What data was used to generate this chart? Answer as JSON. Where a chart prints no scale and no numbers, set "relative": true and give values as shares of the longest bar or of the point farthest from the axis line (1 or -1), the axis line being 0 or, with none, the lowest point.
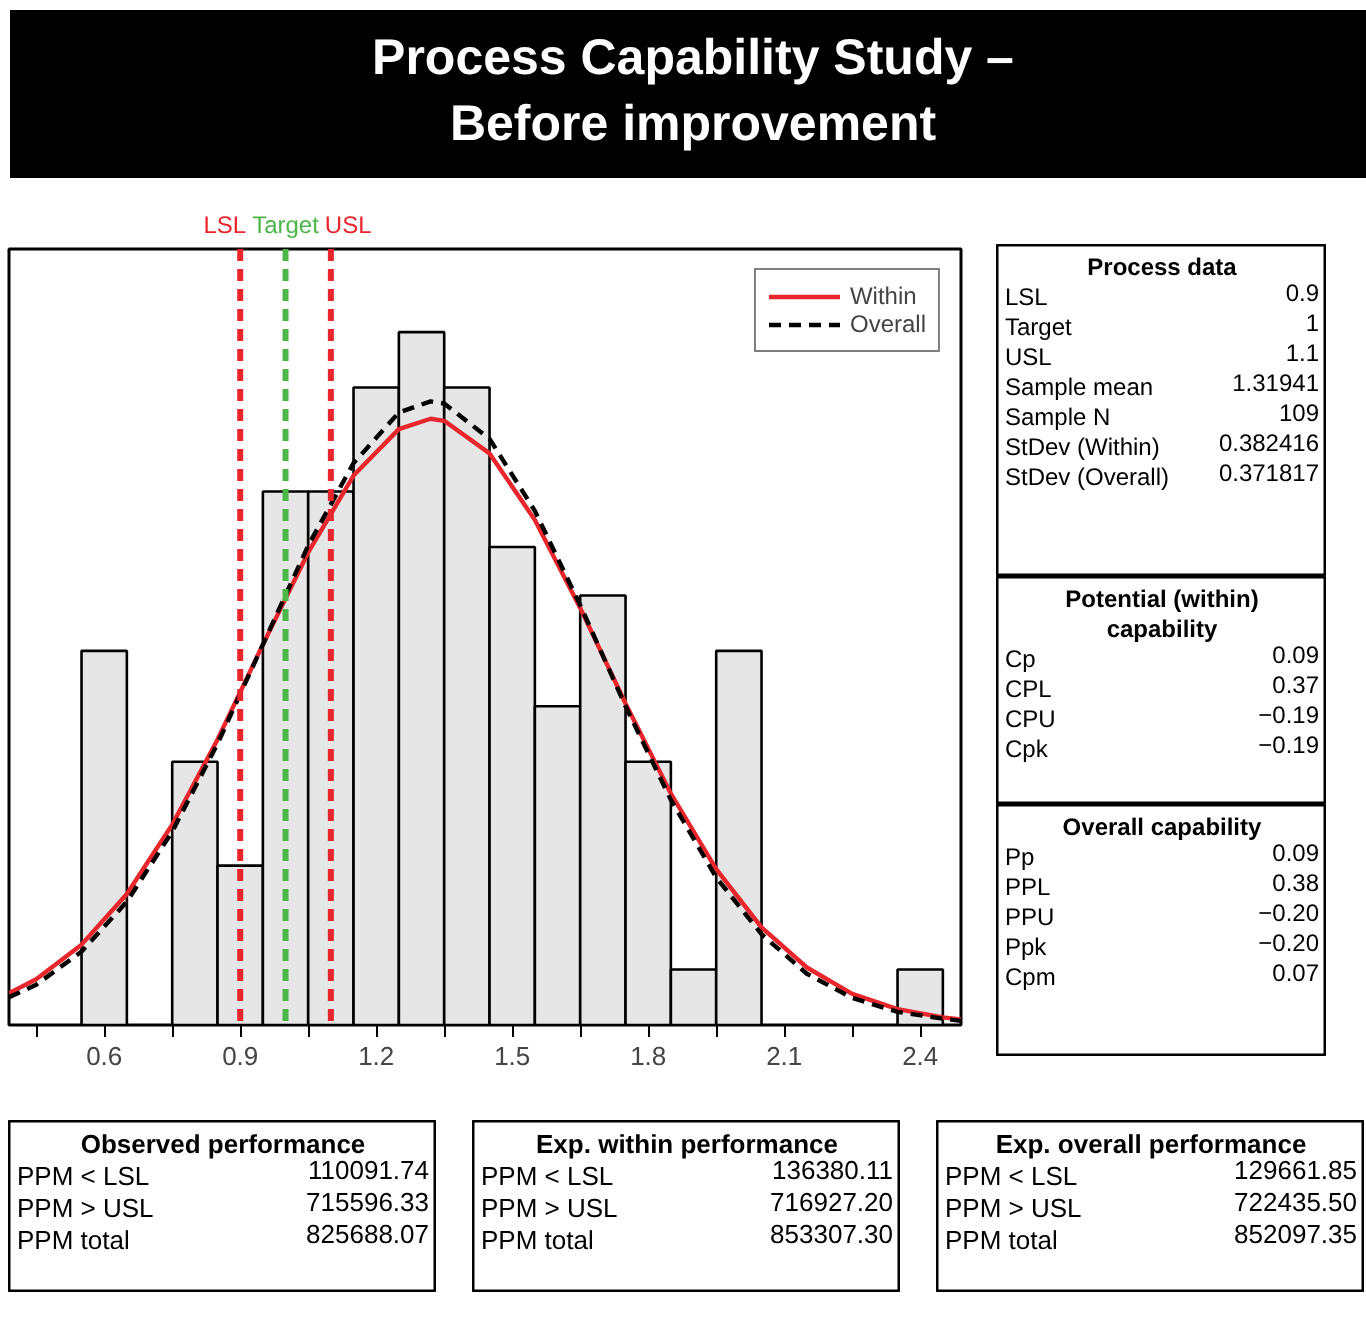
{
  "chart_data": [
    {
      "type": "histogram",
      "title": "Process Capability Study – Before improvement",
      "relative": true,
      "bins": [
        0.55,
        0.65,
        0.75,
        0.85,
        0.95,
        1.05,
        1.15,
        1.25,
        1.35,
        1.45,
        1.55,
        1.65,
        1.75,
        1.85,
        1.95,
        2.05,
        2.15,
        2.25,
        2.35,
        2.45
      ],
      "values": [
        0.54,
        0,
        0.38,
        0.23,
        0.77,
        0.77,
        0.92,
        1,
        0.92,
        0.69,
        0.46,
        0.62,
        0.38,
        0.08,
        0.54,
        0,
        0,
        0,
        0.08
      ],
      "color": "#e6e6e6",
      "series": [
        {
          "name": "Within",
          "type": "line",
          "line_style": "solid",
          "color": "#e8262b",
          "x": [
            0.39,
            0.45,
            0.55,
            0.65,
            0.75,
            0.85,
            0.95,
            1.05,
            1.15,
            1.25,
            1.32,
            1.35,
            1.45,
            1.55,
            1.65,
            1.75,
            1.85,
            1.95,
            2.05,
            2.15,
            2.25,
            2.35,
            2.45,
            2.49
          ],
          "values": [
            0.046,
            0.066,
            0.116,
            0.189,
            0.289,
            0.412,
            0.549,
            0.682,
            0.793,
            0.86,
            0.875,
            0.872,
            0.825,
            0.729,
            0.602,
            0.464,
            0.334,
            0.225,
            0.141,
            0.083,
            0.045,
            0.023,
            0.011,
            0.008
          ]
        },
        {
          "name": "Overall",
          "type": "line",
          "line_style": "dashed",
          "color": "#000000",
          "x": [
            0.39,
            0.45,
            0.55,
            0.65,
            0.75,
            0.85,
            0.95,
            1.05,
            1.15,
            1.25,
            1.32,
            1.35,
            1.45,
            1.55,
            1.65,
            1.75,
            1.85,
            1.95,
            2.05,
            2.15,
            2.25,
            2.35,
            2.45,
            2.49
          ],
          "values": [
            0.04,
            0.058,
            0.106,
            0.178,
            0.279,
            0.406,
            0.549,
            0.692,
            0.811,
            0.884,
            0.9,
            0.897,
            0.846,
            0.742,
            0.606,
            0.46,
            0.325,
            0.213,
            0.131,
            0.074,
            0.039,
            0.019,
            0.009,
            0.006
          ]
        }
      ],
      "xlim": [
        0.39,
        2.49
      ],
      "xticks": [
        {
          "value": 0.45,
          "label": null
        },
        0.6,
        {
          "value": 0.75,
          "label": null
        },
        0.9,
        {
          "value": 1.05,
          "label": null
        },
        1.2,
        {
          "value": 1.35,
          "label": null
        },
        1.5,
        {
          "value": 1.65,
          "label": null
        },
        1.8,
        {
          "value": 1.95,
          "label": null
        },
        2.1,
        {
          "value": 2.25,
          "label": null
        },
        2.4
      ],
      "ref_lines": [
        {
          "axis": "x",
          "value": 0.9,
          "label": "LSL",
          "color": "#e8262b",
          "line_style": "dashed"
        },
        {
          "axis": "x",
          "value": 1,
          "label": "Target",
          "color": "#4cb648",
          "line_style": "dashed"
        },
        {
          "axis": "x",
          "value": 1.1,
          "label": "USL",
          "color": "#e8262b",
          "line_style": "dashed"
        }
      ],
      "legend": "top right",
      "grid": false
    },
    {
      "type": "other",
      "title": "Process data",
      "categories": [
        "LSL",
        "Target",
        "USL",
        "Sample mean",
        "Sample N",
        "StDev (Within)",
        "StDev (Overall)"
      ],
      "value_labels": [
        "0.9",
        "1",
        "1.1",
        "1.31941",
        "109",
        "0.382416",
        "0.371817"
      ]
    },
    {
      "type": "other",
      "title": "Potential (within) capability",
      "categories": [
        "Cp",
        "CPL",
        "CPU",
        "Cpk"
      ],
      "value_labels": [
        "0.09",
        "0.37",
        "−0.19",
        "−0.19"
      ]
    },
    {
      "type": "other",
      "title": "Overall capability",
      "categories": [
        "Pp",
        "PPL",
        "PPU",
        "Ppk",
        "Cpm"
      ],
      "value_labels": [
        "0.09",
        "0.38",
        "−0.20",
        "−0.20",
        "0.07"
      ]
    },
    {
      "type": "other",
      "title": "Observed performance",
      "categories": [
        "PPM < LSL",
        "PPM > USL",
        "PPM total"
      ],
      "value_labels": [
        "110091.74",
        "715596.33",
        "825688.07"
      ]
    },
    {
      "type": "other",
      "title": "Exp. within performance",
      "categories": [
        "PPM < LSL",
        "PPM > USL",
        "PPM total"
      ],
      "value_labels": [
        "136380.11",
        "716927.20",
        "853307.30"
      ]
    },
    {
      "type": "other",
      "title": "Exp. overall performance",
      "categories": [
        "PPM < LSL",
        "PPM > USL",
        "PPM total"
      ],
      "value_labels": [
        "129661.85",
        "722435.50",
        "852097.35"
      ]
    }
  ]
}
